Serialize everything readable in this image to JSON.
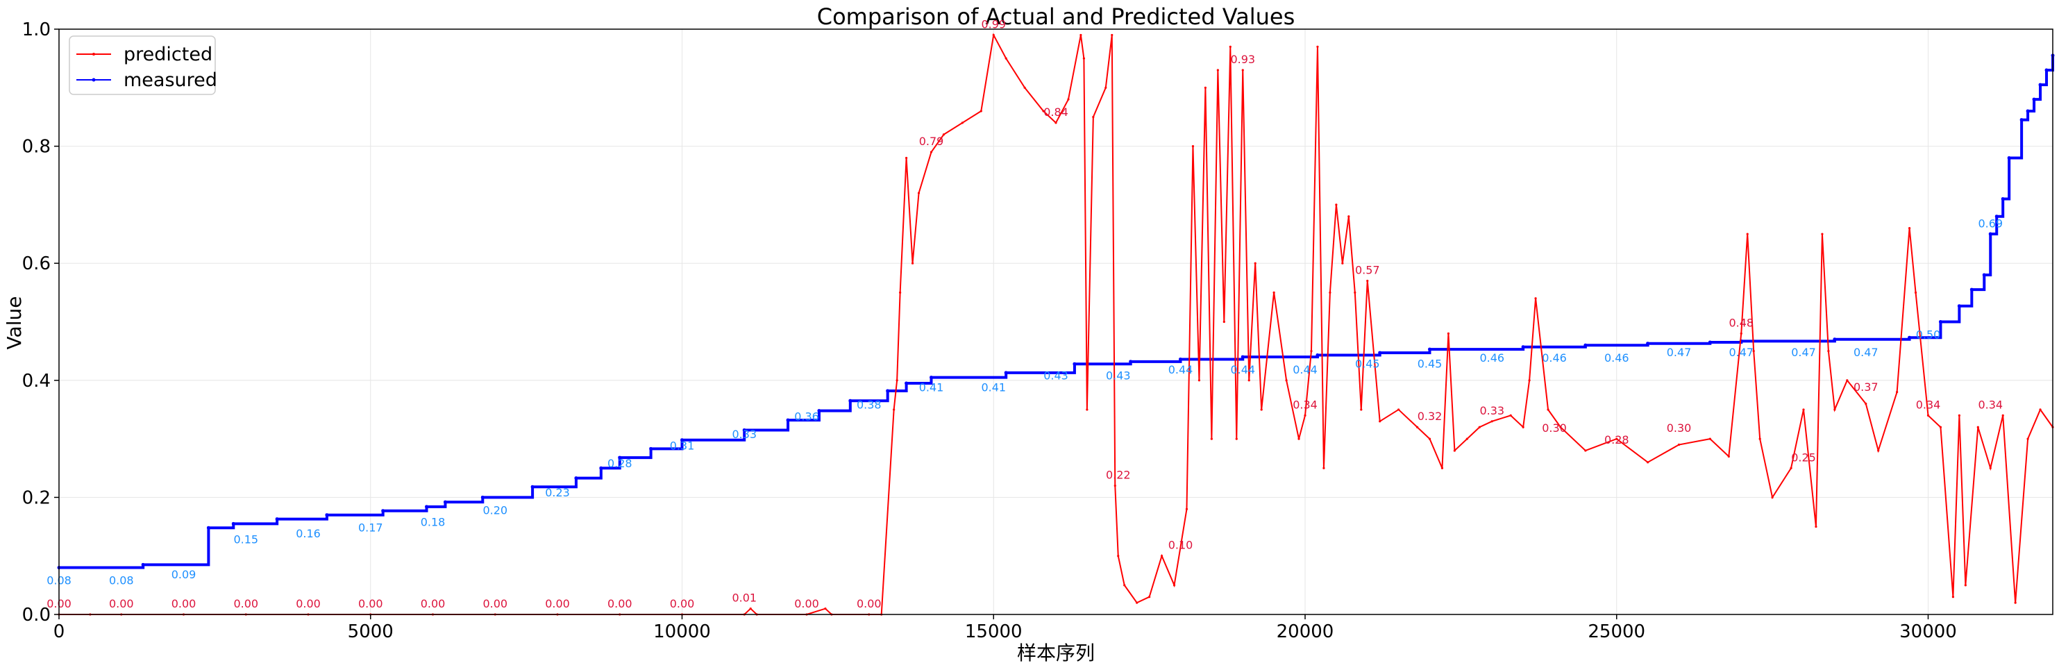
{
  "chart_data": {
    "type": "line",
    "title": "Comparison of Actual and Predicted Values",
    "xlabel": "样本序列",
    "ylabel": "Value",
    "xlim": [
      0,
      32000
    ],
    "ylim": [
      0,
      1.0
    ],
    "x_ticks": [
      0,
      5000,
      10000,
      15000,
      20000,
      25000,
      30000
    ],
    "x_tick_labels": [
      "0",
      "5000",
      "10000",
      "15000",
      "20000",
      "25000",
      "30000"
    ],
    "y_ticks": [
      0,
      0.2,
      0.4,
      0.6,
      0.8,
      1.0
    ],
    "y_tick_labels": [
      "0.0",
      "0.2",
      "0.4",
      "0.6",
      "0.8",
      "1.0"
    ],
    "grid": true,
    "legend_position": "top-left",
    "colors": {
      "predicted": "#ff0000",
      "measured": "#0000ff",
      "predicted_label": "#dc143c",
      "measured_label": "#1e90ff",
      "grid": "#e6e6e6"
    },
    "series": [
      {
        "name": "predicted",
        "color": "#ff0000",
        "x": [
          0,
          500,
          1000,
          2000,
          3000,
          4000,
          5000,
          6000,
          7000,
          8000,
          9000,
          10000,
          11000,
          11100,
          11200,
          12000,
          12300,
          12400,
          13000,
          13200,
          13400,
          13450,
          13500,
          13600,
          13700,
          13800,
          14000,
          14200,
          14500,
          14800,
          15000,
          15200,
          15500,
          15800,
          16000,
          16200,
          16400,
          16450,
          16500,
          16600,
          16800,
          16900,
          16950,
          17000,
          17100,
          17300,
          17500,
          17700,
          17900,
          18100,
          18200,
          18300,
          18400,
          18500,
          18600,
          18700,
          18800,
          18900,
          19000,
          19100,
          19200,
          19300,
          19500,
          19700,
          19900,
          20000,
          20100,
          20200,
          20300,
          20400,
          20500,
          20600,
          20700,
          20800,
          20900,
          21000,
          21200,
          21500,
          21800,
          22000,
          22200,
          22300,
          22400,
          22600,
          22800,
          23000,
          23300,
          23500,
          23600,
          23700,
          23900,
          24100,
          24500,
          25000,
          25500,
          26000,
          26500,
          26800,
          27000,
          27100,
          27200,
          27300,
          27500,
          27800,
          28000,
          28200,
          28300,
          28400,
          28500,
          28700,
          29000,
          29200,
          29500,
          29700,
          29800,
          30000,
          30200,
          30400,
          30500,
          30600,
          30800,
          31000,
          31200,
          31400,
          31600,
          31800,
          32000
        ],
        "values": [
          0.0,
          0.0,
          0.0,
          0.0,
          0.0,
          0.0,
          0.0,
          0.0,
          0.0,
          0.0,
          0.0,
          0.0,
          0.0,
          0.01,
          0.0,
          0.0,
          0.01,
          0.0,
          0.0,
          0.0,
          0.35,
          0.4,
          0.55,
          0.78,
          0.6,
          0.72,
          0.79,
          0.82,
          0.84,
          0.86,
          0.99,
          0.95,
          0.9,
          0.86,
          0.84,
          0.88,
          0.99,
          0.95,
          0.35,
          0.85,
          0.9,
          0.99,
          0.22,
          0.1,
          0.05,
          0.02,
          0.03,
          0.1,
          0.05,
          0.18,
          0.8,
          0.4,
          0.9,
          0.3,
          0.93,
          0.5,
          0.97,
          0.3,
          0.93,
          0.4,
          0.6,
          0.35,
          0.55,
          0.4,
          0.3,
          0.34,
          0.45,
          0.97,
          0.25,
          0.55,
          0.7,
          0.6,
          0.68,
          0.55,
          0.35,
          0.57,
          0.33,
          0.35,
          0.32,
          0.3,
          0.25,
          0.48,
          0.28,
          0.3,
          0.32,
          0.33,
          0.34,
          0.32,
          0.4,
          0.54,
          0.35,
          0.32,
          0.28,
          0.3,
          0.26,
          0.29,
          0.3,
          0.27,
          0.48,
          0.65,
          0.45,
          0.3,
          0.2,
          0.25,
          0.35,
          0.15,
          0.65,
          0.45,
          0.35,
          0.4,
          0.36,
          0.28,
          0.38,
          0.66,
          0.55,
          0.34,
          0.32,
          0.03,
          0.34,
          0.05,
          0.32,
          0.25,
          0.34,
          0.02,
          0.3,
          0.35,
          0.32
        ],
        "labels": [
          {
            "x": 0,
            "y": 0.0,
            "text": "0.00"
          },
          {
            "x": 1000,
            "y": 0.0,
            "text": "0.00"
          },
          {
            "x": 2000,
            "y": 0.0,
            "text": "0.00"
          },
          {
            "x": 3000,
            "y": 0.0,
            "text": "0.00"
          },
          {
            "x": 4000,
            "y": 0.0,
            "text": "0.00"
          },
          {
            "x": 5000,
            "y": 0.0,
            "text": "0.00"
          },
          {
            "x": 6000,
            "y": 0.0,
            "text": "0.00"
          },
          {
            "x": 7000,
            "y": 0.0,
            "text": "0.00"
          },
          {
            "x": 8000,
            "y": 0.0,
            "text": "0.00"
          },
          {
            "x": 9000,
            "y": 0.0,
            "text": "0.00"
          },
          {
            "x": 10000,
            "y": 0.0,
            "text": "0.00"
          },
          {
            "x": 11000,
            "y": 0.01,
            "text": "0.01"
          },
          {
            "x": 12000,
            "y": 0.0,
            "text": "0.00"
          },
          {
            "x": 13000,
            "y": 0.0,
            "text": "0.00"
          },
          {
            "x": 14000,
            "y": 0.79,
            "text": "0.79"
          },
          {
            "x": 15000,
            "y": 0.99,
            "text": "0.99"
          },
          {
            "x": 16000,
            "y": 0.84,
            "text": "0.84"
          },
          {
            "x": 17000,
            "y": 0.22,
            "text": "0.22"
          },
          {
            "x": 18000,
            "y": 0.1,
            "text": "0.10"
          },
          {
            "x": 19000,
            "y": 0.93,
            "text": "0.93"
          },
          {
            "x": 20000,
            "y": 0.34,
            "text": "0.34"
          },
          {
            "x": 21000,
            "y": 0.57,
            "text": "0.57"
          },
          {
            "x": 22000,
            "y": 0.32,
            "text": "0.32"
          },
          {
            "x": 23000,
            "y": 0.33,
            "text": "0.33"
          },
          {
            "x": 24000,
            "y": 0.3,
            "text": "0.30"
          },
          {
            "x": 25000,
            "y": 0.28,
            "text": "0.28"
          },
          {
            "x": 26000,
            "y": 0.3,
            "text": "0.30"
          },
          {
            "x": 27000,
            "y": 0.48,
            "text": "0.48"
          },
          {
            "x": 28000,
            "y": 0.25,
            "text": "0.25"
          },
          {
            "x": 29000,
            "y": 0.37,
            "text": "0.37"
          },
          {
            "x": 30000,
            "y": 0.34,
            "text": "0.34"
          },
          {
            "x": 31000,
            "y": 0.34,
            "text": "0.34"
          }
        ]
      },
      {
        "name": "measured",
        "color": "#0000ff",
        "step_x": [
          0,
          1350,
          2400,
          2800,
          3500,
          4300,
          5200,
          5900,
          6200,
          6800,
          7600,
          8300,
          8700,
          9000,
          9500,
          10000,
          11000,
          11700,
          12200,
          12700,
          13300,
          13600,
          14000,
          15200,
          16300,
          17200,
          18000,
          19000,
          20200,
          21200,
          22000,
          23500,
          24500,
          25500,
          26500,
          27000,
          28500,
          29700,
          30200,
          30500,
          30700,
          30900,
          31000,
          31100,
          31200,
          31300,
          31500,
          31600,
          31700,
          31800,
          31900,
          32000
        ],
        "step_y": [
          0.08,
          0.085,
          0.148,
          0.155,
          0.163,
          0.17,
          0.177,
          0.184,
          0.192,
          0.2,
          0.218,
          0.233,
          0.25,
          0.268,
          0.283,
          0.298,
          0.315,
          0.332,
          0.348,
          0.365,
          0.382,
          0.395,
          0.405,
          0.413,
          0.428,
          0.432,
          0.436,
          0.44,
          0.443,
          0.447,
          0.453,
          0.457,
          0.46,
          0.463,
          0.465,
          0.467,
          0.47,
          0.473,
          0.5,
          0.527,
          0.555,
          0.58,
          0.65,
          0.68,
          0.71,
          0.78,
          0.845,
          0.86,
          0.88,
          0.905,
          0.93,
          0.955
        ],
        "labels": [
          {
            "x": 0,
            "y": 0.08,
            "text": "0.08"
          },
          {
            "x": 1000,
            "y": 0.08,
            "text": "0.08"
          },
          {
            "x": 2000,
            "y": 0.09,
            "text": "0.09"
          },
          {
            "x": 3000,
            "y": 0.15,
            "text": "0.15"
          },
          {
            "x": 4000,
            "y": 0.16,
            "text": "0.16"
          },
          {
            "x": 5000,
            "y": 0.17,
            "text": "0.17"
          },
          {
            "x": 6000,
            "y": 0.18,
            "text": "0.18"
          },
          {
            "x": 7000,
            "y": 0.2,
            "text": "0.20"
          },
          {
            "x": 8000,
            "y": 0.23,
            "text": "0.23"
          },
          {
            "x": 9000,
            "y": 0.28,
            "text": "0.28"
          },
          {
            "x": 10000,
            "y": 0.31,
            "text": "0.31"
          },
          {
            "x": 11000,
            "y": 0.33,
            "text": "0.33"
          },
          {
            "x": 12000,
            "y": 0.36,
            "text": "0.36"
          },
          {
            "x": 13000,
            "y": 0.38,
            "text": "0.38"
          },
          {
            "x": 14000,
            "y": 0.41,
            "text": "0.41"
          },
          {
            "x": 15000,
            "y": 0.41,
            "text": "0.41"
          },
          {
            "x": 16000,
            "y": 0.43,
            "text": "0.43"
          },
          {
            "x": 17000,
            "y": 0.43,
            "text": "0.43"
          },
          {
            "x": 18000,
            "y": 0.44,
            "text": "0.44"
          },
          {
            "x": 19000,
            "y": 0.44,
            "text": "0.44"
          },
          {
            "x": 20000,
            "y": 0.44,
            "text": "0.44"
          },
          {
            "x": 21000,
            "y": 0.45,
            "text": "0.45"
          },
          {
            "x": 22000,
            "y": 0.45,
            "text": "0.45"
          },
          {
            "x": 23000,
            "y": 0.46,
            "text": "0.46"
          },
          {
            "x": 24000,
            "y": 0.46,
            "text": "0.46"
          },
          {
            "x": 25000,
            "y": 0.46,
            "text": "0.46"
          },
          {
            "x": 26000,
            "y": 0.47,
            "text": "0.47"
          },
          {
            "x": 27000,
            "y": 0.47,
            "text": "0.47"
          },
          {
            "x": 28000,
            "y": 0.47,
            "text": "0.47"
          },
          {
            "x": 29000,
            "y": 0.47,
            "text": "0.47"
          },
          {
            "x": 30000,
            "y": 0.5,
            "text": "0.50"
          },
          {
            "x": 31000,
            "y": 0.69,
            "text": "0.69"
          }
        ]
      }
    ]
  }
}
